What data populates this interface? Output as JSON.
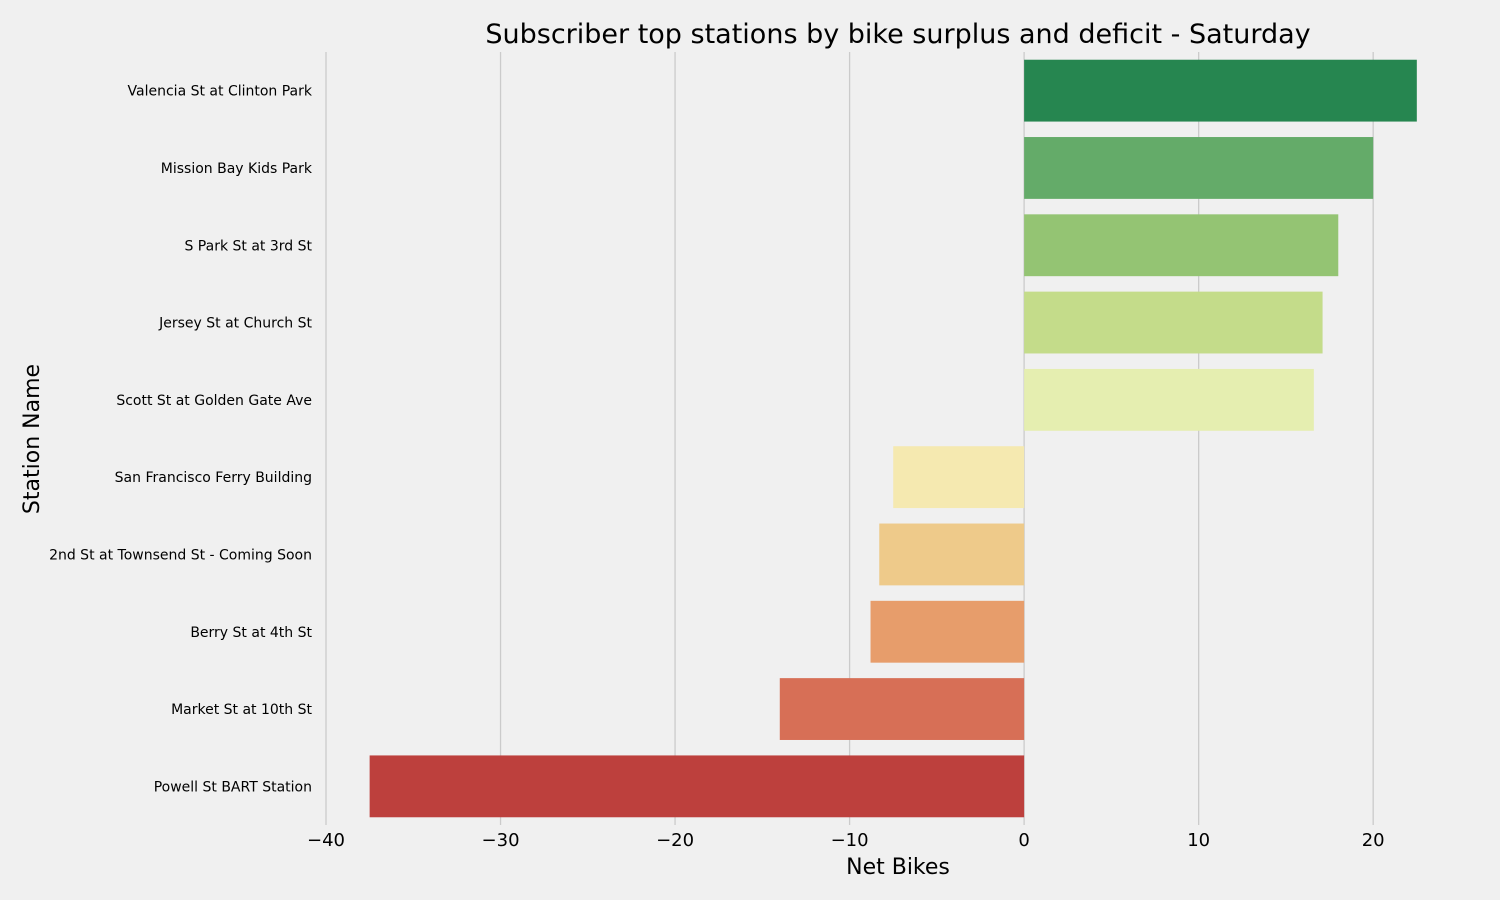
{
  "chart_data": {
    "type": "bar",
    "orientation": "horizontal",
    "title": "Subscriber top stations by bike surplus and deficit - Saturday",
    "xlabel": "Net Bikes",
    "ylabel": "Station Name",
    "xlim": [
      -40,
      24
    ],
    "xticks": [
      -40,
      -30,
      -20,
      -10,
      0,
      10,
      20
    ],
    "xtick_labels": [
      "−40",
      "−30",
      "−20",
      "−10",
      "0",
      "10",
      "20"
    ],
    "grid": "vertical",
    "legend": "none",
    "categories": [
      "Valencia St at Clinton Park",
      "Mission Bay Kids Park",
      "S Park St at 3rd St",
      "Jersey St at Church St",
      "Scott St at Golden Gate Ave",
      "San Francisco Ferry Building",
      "2nd St at Townsend St - Coming Soon",
      "Berry St at 4th St",
      "Market St at 10th St",
      "Powell St BART Station"
    ],
    "values": [
      22.5,
      20,
      18,
      17.1,
      16.6,
      -7.5,
      -8.3,
      -8.8,
      -14,
      -37.5
    ],
    "colors": [
      "#268650",
      "#64ab69",
      "#94c473",
      "#c4dc8a",
      "#e5eeb0",
      "#f5e9b0",
      "#eeca8a",
      "#e79d6b",
      "#d76f56",
      "#bd403d"
    ]
  }
}
